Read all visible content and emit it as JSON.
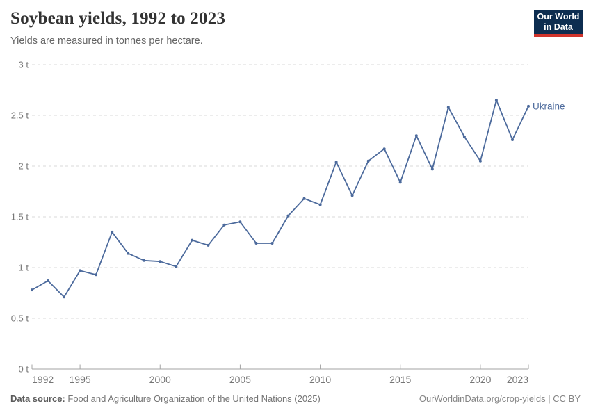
{
  "header": {
    "title": "Soybean yields, 1992 to 2023",
    "subtitle": "Yields are measured in tonnes per hectare."
  },
  "logo": {
    "line1": "Our World",
    "line2": "in Data"
  },
  "chart_data": {
    "type": "line",
    "title": "Soybean yields, 1992 to 2023",
    "subtitle": "Yields are measured in tonnes per hectare.",
    "xlabel": "",
    "ylabel": "tonnes per hectare",
    "unit": "t",
    "grid": true,
    "legend_position": "end-of-line",
    "xlim": [
      1992,
      2023
    ],
    "ylim": [
      0,
      3
    ],
    "x": [
      1992,
      1993,
      1994,
      1995,
      1996,
      1997,
      1998,
      1999,
      2000,
      2001,
      2002,
      2003,
      2004,
      2005,
      2006,
      2007,
      2008,
      2009,
      2010,
      2011,
      2012,
      2013,
      2014,
      2015,
      2016,
      2017,
      2018,
      2019,
      2020,
      2021,
      2022,
      2023
    ],
    "series": [
      {
        "name": "Ukraine",
        "color": "#4C6A9C",
        "values": [
          0.78,
          0.87,
          0.71,
          0.97,
          0.93,
          1.35,
          1.14,
          1.07,
          1.06,
          1.01,
          1.27,
          1.22,
          1.42,
          1.45,
          1.24,
          1.24,
          1.51,
          1.68,
          1.62,
          2.04,
          1.71,
          2.05,
          2.17,
          1.84,
          2.3,
          1.97,
          2.58,
          2.29,
          2.05,
          2.65,
          2.26,
          2.59
        ]
      }
    ],
    "y_ticks": [
      {
        "value": 0,
        "label": "0 t"
      },
      {
        "value": 0.5,
        "label": "0.5 t"
      },
      {
        "value": 1,
        "label": "1 t"
      },
      {
        "value": 1.5,
        "label": "1.5 t"
      },
      {
        "value": 2,
        "label": "2 t"
      },
      {
        "value": 2.5,
        "label": "2.5 t"
      },
      {
        "value": 3,
        "label": "3 t"
      }
    ],
    "x_ticks": [
      {
        "value": 1992,
        "label": "1992"
      },
      {
        "value": 1995,
        "label": "1995"
      },
      {
        "value": 2000,
        "label": "2000"
      },
      {
        "value": 2005,
        "label": "2005"
      },
      {
        "value": 2010,
        "label": "2010"
      },
      {
        "value": 2015,
        "label": "2015"
      },
      {
        "value": 2020,
        "label": "2020"
      },
      {
        "value": 2023,
        "label": "2023"
      }
    ]
  },
  "colors": {
    "line": "#4C6A9C",
    "grid": "#d9d9d9",
    "axis": "#a3a3a3",
    "tick_text": "#757575",
    "title": "#333333",
    "subtitle": "#666666",
    "logo_bg": "#0d2d50",
    "logo_red": "#d0342c"
  },
  "footer": {
    "source_label": "Data source:",
    "source_text": "Food and Agriculture Organization of the United Nations (2025)",
    "credit": "OurWorldinData.org/crop-yields | CC BY"
  }
}
